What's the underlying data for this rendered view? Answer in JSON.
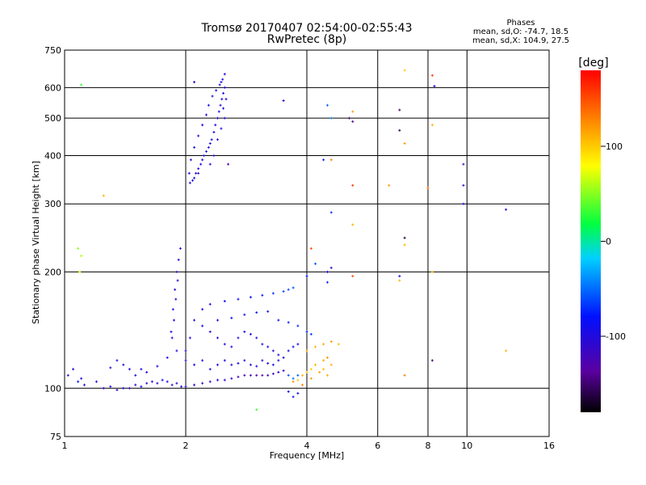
{
  "chart_data": {
    "type": "scatter",
    "title": "Tromsø 20170407 02:54:00-02:55:43",
    "subtitle": "RwPretec (8p)",
    "xlabel": "Frequency [MHz]",
    "ylabel": "Stationary phase Virtual Height [km]",
    "x_scale": "log",
    "y_scale": "log",
    "xlim": [
      1,
      16
    ],
    "ylim": [
      75,
      750
    ],
    "x_ticks": [
      "1",
      "2",
      "4",
      "6",
      "8",
      "10",
      "16"
    ],
    "y_ticks": [
      "75",
      "100",
      "200",
      "300",
      "400",
      "500",
      "600",
      "750"
    ],
    "grid": true,
    "stats": {
      "heading": "Phases",
      "line_o": "mean, sd,O: -74.7, 18.5",
      "line_x": "mean, sd,X: 104.9, 27.5"
    },
    "colorbar": {
      "label": "[deg]",
      "range": [
        -180,
        180
      ],
      "ticks": [
        "100",
        "0",
        "-100"
      ],
      "colormap": "rainbow"
    },
    "series": [
      {
        "points": [
          [
            1.02,
            108,
            -110
          ],
          [
            1.05,
            112,
            -105
          ],
          [
            1.08,
            104,
            -80
          ],
          [
            1.1,
            106,
            -95
          ],
          [
            1.12,
            102,
            -100
          ],
          [
            1.2,
            104,
            -100
          ],
          [
            1.25,
            100,
            -110
          ],
          [
            1.3,
            101,
            -90
          ],
          [
            1.35,
            99,
            -115
          ],
          [
            1.4,
            100,
            -100
          ],
          [
            1.45,
            100,
            -120
          ],
          [
            1.5,
            102,
            -105
          ],
          [
            1.55,
            101,
            -95
          ],
          [
            1.6,
            103,
            -110
          ],
          [
            1.65,
            104,
            -100
          ],
          [
            1.7,
            103,
            -105
          ],
          [
            1.75,
            105,
            -95
          ],
          [
            1.8,
            104,
            -100
          ],
          [
            1.85,
            102,
            -110
          ],
          [
            1.9,
            103,
            -105
          ],
          [
            1.95,
            101,
            -100
          ],
          [
            2.0,
            101,
            -95
          ],
          [
            2.1,
            102,
            -100
          ],
          [
            2.2,
            103,
            -110
          ],
          [
            2.3,
            104,
            -105
          ],
          [
            2.4,
            105,
            -100
          ],
          [
            2.5,
            105,
            -110
          ],
          [
            2.6,
            106,
            -115
          ],
          [
            2.7,
            107,
            -120
          ],
          [
            2.8,
            108,
            -125
          ],
          [
            2.9,
            108,
            -130
          ],
          [
            3.0,
            108,
            -128
          ],
          [
            3.1,
            108,
            -130
          ],
          [
            3.2,
            108,
            -125
          ],
          [
            3.3,
            109,
            -120
          ],
          [
            3.4,
            110,
            -115
          ],
          [
            3.5,
            111,
            -110
          ],
          [
            3.6,
            108,
            -60
          ],
          [
            3.7,
            106,
            -50
          ],
          [
            3.8,
            108,
            -55
          ],
          [
            1.3,
            113,
            -105
          ],
          [
            1.35,
            118,
            -100
          ],
          [
            1.4,
            115,
            -95
          ],
          [
            1.45,
            112,
            -100
          ],
          [
            1.5,
            108,
            -100
          ],
          [
            1.55,
            112,
            -95
          ],
          [
            1.6,
            110,
            -100
          ],
          [
            1.7,
            114,
            -100
          ],
          [
            1.8,
            120,
            -95
          ],
          [
            1.9,
            125,
            -100
          ],
          [
            1.84,
            140,
            -100
          ],
          [
            1.86,
            160,
            -95
          ],
          [
            1.88,
            180,
            -100
          ],
          [
            1.9,
            200,
            -100
          ],
          [
            1.92,
            215,
            -100
          ],
          [
            1.94,
            230,
            -100
          ],
          [
            1.91,
            190,
            -110
          ],
          [
            1.89,
            170,
            -100
          ],
          [
            1.87,
            150,
            -95
          ],
          [
            1.85,
            135,
            -100
          ],
          [
            2.0,
            125,
            -100
          ],
          [
            2.05,
            135,
            -95
          ],
          [
            2.1,
            150,
            -100
          ],
          [
            2.2,
            145,
            -95
          ],
          [
            2.3,
            140,
            -100
          ],
          [
            2.4,
            135,
            -95
          ],
          [
            2.5,
            130,
            -100
          ],
          [
            2.6,
            128,
            -100
          ],
          [
            2.7,
            135,
            -95
          ],
          [
            2.8,
            140,
            -95
          ],
          [
            2.9,
            138,
            -100
          ],
          [
            3.0,
            135,
            -95
          ],
          [
            3.1,
            130,
            -100
          ],
          [
            3.2,
            128,
            -95
          ],
          [
            3.3,
            125,
            -100
          ],
          [
            3.4,
            122,
            -95
          ],
          [
            3.5,
            120,
            -100
          ],
          [
            3.6,
            125,
            -95
          ],
          [
            3.7,
            128,
            -90
          ],
          [
            3.8,
            130,
            -90
          ],
          [
            2.0,
            118,
            -100
          ],
          [
            2.1,
            115,
            -95
          ],
          [
            2.2,
            118,
            -100
          ],
          [
            2.3,
            112,
            -95
          ],
          [
            2.4,
            115,
            -100
          ],
          [
            2.5,
            118,
            -95
          ],
          [
            2.6,
            115,
            -100
          ],
          [
            2.7,
            116,
            -95
          ],
          [
            2.8,
            118,
            -100
          ],
          [
            2.9,
            115,
            -95
          ],
          [
            3.0,
            114,
            -100
          ],
          [
            3.1,
            118,
            -95
          ],
          [
            3.2,
            116,
            -100
          ],
          [
            3.3,
            115,
            -95
          ],
          [
            3.4,
            118,
            -100
          ],
          [
            2.2,
            160,
            -95
          ],
          [
            2.3,
            165,
            -100
          ],
          [
            2.5,
            168,
            -90
          ],
          [
            2.7,
            170,
            -85
          ],
          [
            2.9,
            172,
            -80
          ],
          [
            3.1,
            174,
            -75
          ],
          [
            3.3,
            176,
            -70
          ],
          [
            3.5,
            178,
            -65
          ],
          [
            3.6,
            180,
            -60
          ],
          [
            3.7,
            182,
            -60
          ],
          [
            2.4,
            150,
            -95
          ],
          [
            2.6,
            152,
            -90
          ],
          [
            2.8,
            155,
            -90
          ],
          [
            3.0,
            157,
            -85
          ],
          [
            3.2,
            158,
            -85
          ],
          [
            3.4,
            150,
            -80
          ],
          [
            3.6,
            148,
            -75
          ],
          [
            3.8,
            145,
            -70
          ],
          [
            4.0,
            140,
            -70
          ],
          [
            4.1,
            138,
            -65
          ],
          [
            3.7,
            95,
            -80
          ],
          [
            3.8,
            97,
            -85
          ],
          [
            3.6,
            98,
            -90
          ],
          [
            3.8,
            105,
            100
          ],
          [
            3.9,
            108,
            110
          ],
          [
            4.0,
            110,
            105
          ],
          [
            4.1,
            112,
            100
          ],
          [
            4.2,
            115,
            110
          ],
          [
            4.4,
            118,
            115
          ],
          [
            4.5,
            120,
            120
          ],
          [
            4.6,
            115,
            110
          ],
          [
            4.4,
            112,
            105
          ],
          [
            4.3,
            110,
            115
          ],
          [
            4.0,
            125,
            120
          ],
          [
            4.2,
            128,
            110
          ],
          [
            4.4,
            130,
            115
          ],
          [
            4.6,
            132,
            120
          ],
          [
            4.8,
            130,
            105
          ],
          [
            3.9,
            102,
            130
          ],
          [
            3.7,
            104,
            125
          ],
          [
            4.1,
            106,
            120
          ],
          [
            4.5,
            108,
            110
          ],
          [
            2.05,
            340,
            -100
          ],
          [
            2.08,
            345,
            -95
          ],
          [
            2.1,
            350,
            -100
          ],
          [
            2.12,
            360,
            -95
          ],
          [
            2.15,
            370,
            -100
          ],
          [
            2.18,
            380,
            -95
          ],
          [
            2.2,
            390,
            -100
          ],
          [
            2.22,
            400,
            -95
          ],
          [
            2.25,
            410,
            -100
          ],
          [
            2.28,
            420,
            -95
          ],
          [
            2.3,
            430,
            -100
          ],
          [
            2.32,
            440,
            -95
          ],
          [
            2.35,
            460,
            -100
          ],
          [
            2.37,
            480,
            -95
          ],
          [
            2.4,
            500,
            -100
          ],
          [
            2.42,
            520,
            -95
          ],
          [
            2.44,
            540,
            -100
          ],
          [
            2.46,
            560,
            -95
          ],
          [
            2.48,
            580,
            -100
          ],
          [
            2.5,
            600,
            -95
          ],
          [
            2.45,
            620,
            -100
          ],
          [
            2.47,
            630,
            -95
          ],
          [
            2.43,
            610,
            -100
          ],
          [
            2.38,
            590,
            -95
          ],
          [
            2.33,
            570,
            -100
          ],
          [
            2.28,
            540,
            -95
          ],
          [
            2.25,
            510,
            -100
          ],
          [
            2.2,
            480,
            -95
          ],
          [
            2.15,
            450,
            -100
          ],
          [
            2.1,
            420,
            -95
          ],
          [
            2.06,
            390,
            -100
          ],
          [
            2.04,
            360,
            -95
          ],
          [
            2.3,
            380,
            -100
          ],
          [
            2.35,
            400,
            -95
          ],
          [
            2.4,
            440,
            -100
          ],
          [
            2.45,
            470,
            -95
          ],
          [
            2.5,
            500,
            -100
          ],
          [
            2.48,
            530,
            -95
          ],
          [
            2.52,
            560,
            -100
          ],
          [
            2.5,
            650,
            -100
          ],
          [
            2.1,
            620,
            -110
          ],
          [
            2.15,
            360,
            -120
          ],
          [
            2.55,
            380,
            -130
          ],
          [
            1.1,
            610,
            30
          ],
          [
            1.08,
            230,
            50
          ],
          [
            1.1,
            220,
            60
          ],
          [
            1.09,
            200,
            70
          ],
          [
            1.25,
            315,
            110
          ],
          [
            3.5,
            555,
            -100
          ],
          [
            4.5,
            540,
            -50
          ],
          [
            4.6,
            500,
            -40
          ],
          [
            5.2,
            520,
            120
          ],
          [
            5.1,
            500,
            -150
          ],
          [
            5.2,
            490,
            -140
          ],
          [
            6.8,
            525,
            -150
          ],
          [
            6.8,
            465,
            -160
          ],
          [
            7.0,
            430,
            120
          ],
          [
            7.0,
            665,
            100
          ],
          [
            8.2,
            645,
            160
          ],
          [
            8.3,
            605,
            -100
          ],
          [
            8.2,
            480,
            110
          ],
          [
            9.8,
            380,
            -120
          ],
          [
            9.8,
            335,
            -110
          ],
          [
            9.8,
            300,
            -100
          ],
          [
            8.0,
            330,
            140
          ],
          [
            6.4,
            335,
            120
          ],
          [
            5.2,
            335,
            160
          ],
          [
            4.4,
            390,
            -90
          ],
          [
            4.6,
            390,
            130
          ],
          [
            4.6,
            285,
            -70
          ],
          [
            5.2,
            265,
            110
          ],
          [
            7.0,
            245,
            -160
          ],
          [
            7.0,
            235,
            110
          ],
          [
            12.5,
            290,
            -100
          ],
          [
            12.5,
            125,
            110
          ],
          [
            8.2,
            200,
            110
          ],
          [
            6.8,
            195,
            -100
          ],
          [
            6.8,
            190,
            110
          ],
          [
            4.6,
            205,
            -110
          ],
          [
            4.5,
            200,
            -90
          ],
          [
            4.5,
            188,
            -70
          ],
          [
            4.1,
            230,
            150
          ],
          [
            4.2,
            210,
            -60
          ],
          [
            4.0,
            195,
            -80
          ],
          [
            5.2,
            195,
            150
          ],
          [
            8.2,
            118,
            -150
          ],
          [
            7.0,
            108,
            130
          ],
          [
            3.0,
            88,
            30
          ]
        ]
      }
    ]
  }
}
